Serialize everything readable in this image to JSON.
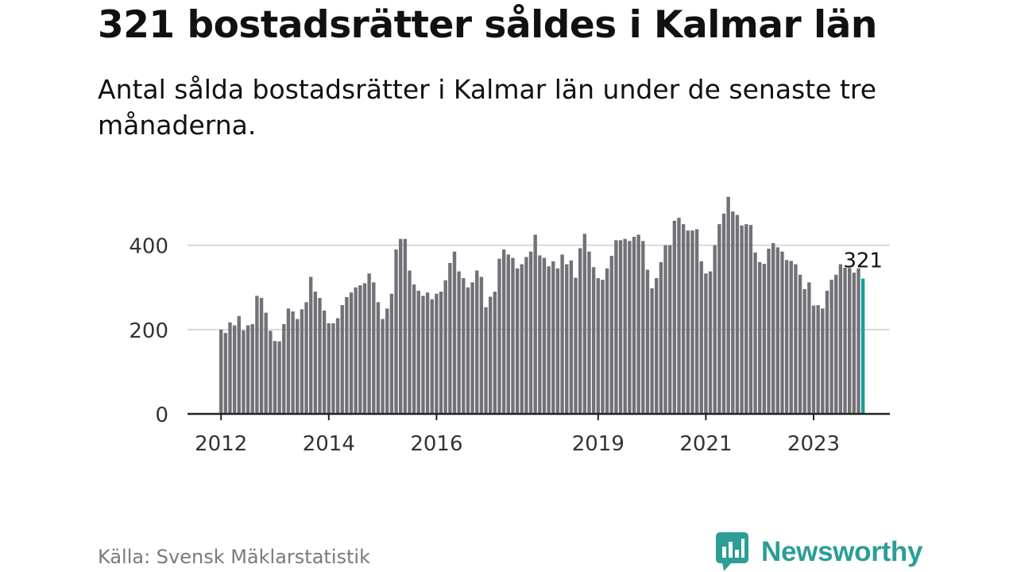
{
  "header": {
    "title": "321 bostadsrätter såldes i Kalmar län",
    "subtitle": "Antal sålda bostadsrätter i Kalmar län under de senaste tre månaderna."
  },
  "footer": {
    "source": "Källa: Svensk Mäklarstatistik",
    "brand": "Newsworthy"
  },
  "colors": {
    "bar": "#727178",
    "highlight": "#1a9e97",
    "grid": "#d9d9d9",
    "axis": "#222222",
    "tick_text": "#333333",
    "brand": "#2b9e96"
  },
  "chart_data": {
    "type": "bar",
    "title": "321 bostadsrätter såldes i Kalmar län",
    "xlabel": "",
    "ylabel": "",
    "ylim": [
      0,
      520
    ],
    "yticks": [
      0,
      200,
      400
    ],
    "x_tick_labels": [
      {
        "label": "2012",
        "index": 0
      },
      {
        "label": "2014",
        "index": 24
      },
      {
        "label": "2016",
        "index": 48
      },
      {
        "label": "2019",
        "index": 84
      },
      {
        "label": "2021",
        "index": 108
      },
      {
        "label": "2023",
        "index": 132
      }
    ],
    "annotation": {
      "text": "321",
      "index": 143
    },
    "highlight_index": 143,
    "values": [
      200,
      192,
      217,
      210,
      232,
      198,
      210,
      213,
      280,
      275,
      240,
      197,
      173,
      172,
      213,
      250,
      243,
      225,
      248,
      265,
      325,
      290,
      275,
      245,
      215,
      215,
      227,
      258,
      277,
      288,
      300,
      305,
      310,
      333,
      312,
      265,
      225,
      250,
      285,
      390,
      415,
      415,
      340,
      307,
      292,
      280,
      288,
      272,
      285,
      290,
      317,
      358,
      385,
      338,
      322,
      300,
      312,
      340,
      325,
      253,
      278,
      290,
      368,
      390,
      378,
      370,
      345,
      355,
      372,
      385,
      425,
      376,
      370,
      350,
      362,
      345,
      378,
      355,
      364,
      323,
      393,
      427,
      385,
      348,
      322,
      318,
      345,
      375,
      412,
      412,
      415,
      410,
      420,
      425,
      410,
      342,
      298,
      322,
      360,
      400,
      400,
      458,
      465,
      450,
      435,
      435,
      438,
      362,
      333,
      338,
      400,
      450,
      475,
      515,
      480,
      472,
      447,
      450,
      448,
      383,
      360,
      356,
      392,
      405,
      395,
      385,
      365,
      363,
      355,
      330,
      296,
      312,
      257,
      258,
      250,
      292,
      318,
      330,
      355,
      347,
      346,
      335,
      345,
      321
    ]
  }
}
